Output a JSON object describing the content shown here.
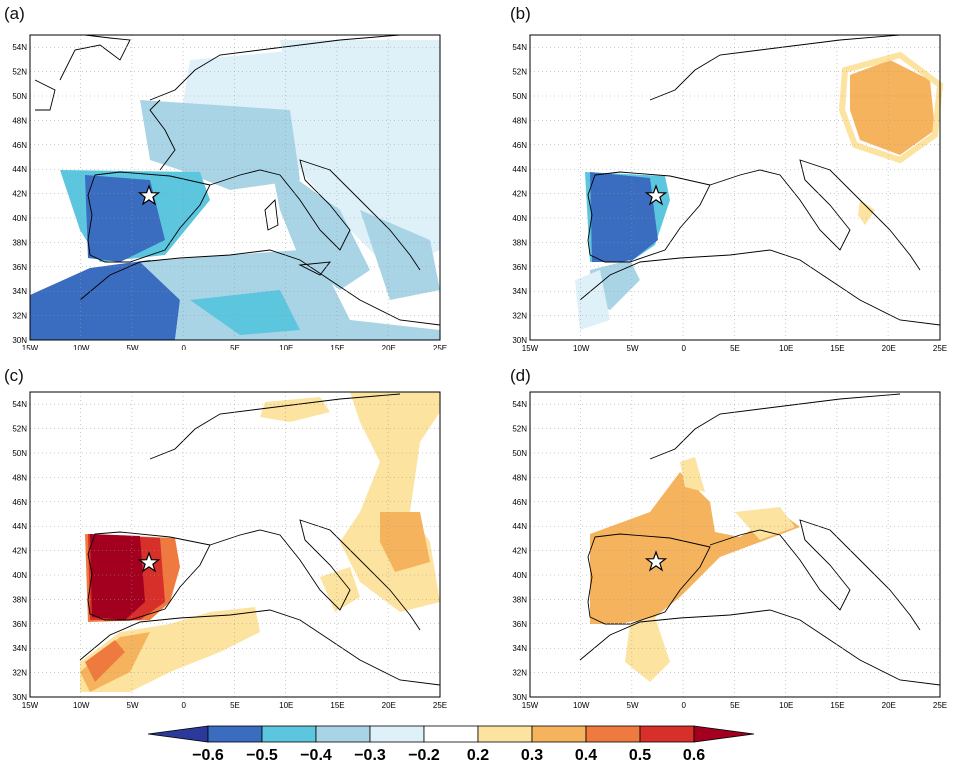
{
  "figure": {
    "panels": [
      {
        "id": "a",
        "label": "(a)"
      },
      {
        "id": "b",
        "label": "(b)"
      },
      {
        "id": "c",
        "label": "(c)"
      },
      {
        "id": "d",
        "label": "(d)"
      }
    ],
    "lon_ticks": [
      "15W",
      "10W",
      "5W",
      "0",
      "5E",
      "10E",
      "15E",
      "20E",
      "25E"
    ],
    "lat_ticks": [
      "30N",
      "32N",
      "34N",
      "36N",
      "38N",
      "40N",
      "42N",
      "44N",
      "46N",
      "48N",
      "50N",
      "52N",
      "54N"
    ],
    "colorbar": {
      "tick_labels": [
        "-0.6",
        "-0.5",
        "-0.4",
        "-0.3",
        "-0.2",
        "0.2",
        "0.3",
        "0.4",
        "0.5",
        "0.6"
      ],
      "colors": [
        "#2b3a9a",
        "#3a6cc0",
        "#5bc6de",
        "#a8d4e6",
        "#dff1f8",
        "#ffffff",
        "#fde3a0",
        "#f6b35e",
        "#ef7a3f",
        "#d7302a",
        "#a3001f"
      ]
    }
  },
  "colors": {
    "deep_blue": "#3a6cc0",
    "mid_blue": "#5bc6de",
    "light_blue": "#a8d4e6",
    "pale_blue": "#dff1f8",
    "pale_yellow": "#fde3a0",
    "orange": "#f6b35e",
    "red_orange": "#ef7a3f",
    "red": "#d7302a",
    "dark_red": "#a3001f"
  }
}
